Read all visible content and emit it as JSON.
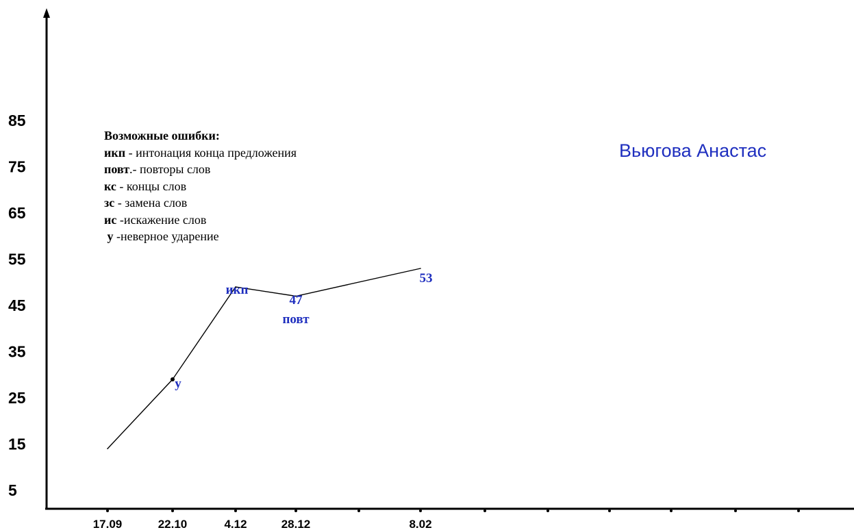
{
  "student_name": "Вьюгова Анастас",
  "legend": {
    "title": "Возможные ошибки:",
    "items": [
      {
        "abbr": "икп",
        "text": " - интонация конца предложения"
      },
      {
        "abbr": "повт",
        "text": ".- повторы слов"
      },
      {
        "abbr": "кс",
        "text": " - концы слов"
      },
      {
        "abbr": "зс",
        "text": " - замена слов"
      },
      {
        "abbr": "ис",
        "text": " -искажение слов"
      },
      {
        "abbr": "у",
        "text": " -неверное ударение"
      }
    ]
  },
  "chart_data": {
    "type": "line",
    "y_ticks": [
      "5",
      "15",
      "25",
      "35",
      "45",
      "55",
      "65",
      "75",
      "85"
    ],
    "x_ticks": [
      "17.09",
      "22.10",
      "4.12",
      "28.12",
      "8.02"
    ],
    "series": [
      {
        "points": [
          {
            "x": "17.09",
            "y": 14
          },
          {
            "x": "22.10",
            "y": 29
          },
          {
            "x": "4.12",
            "y": 49
          },
          {
            "x": "28.12",
            "y": 47
          },
          {
            "x": "8.02",
            "y": 53
          }
        ]
      }
    ],
    "annotations": [
      {
        "x": "22.10",
        "label": "у"
      },
      {
        "x": "4.12",
        "label": "икп"
      },
      {
        "x": "28.12",
        "value_label": "47",
        "label": "повт"
      },
      {
        "x": "8.02",
        "value_label": "53"
      }
    ],
    "ylim": [
      0,
      100
    ],
    "line_color": "#000000",
    "annotation_color": "#1f2fbf"
  }
}
